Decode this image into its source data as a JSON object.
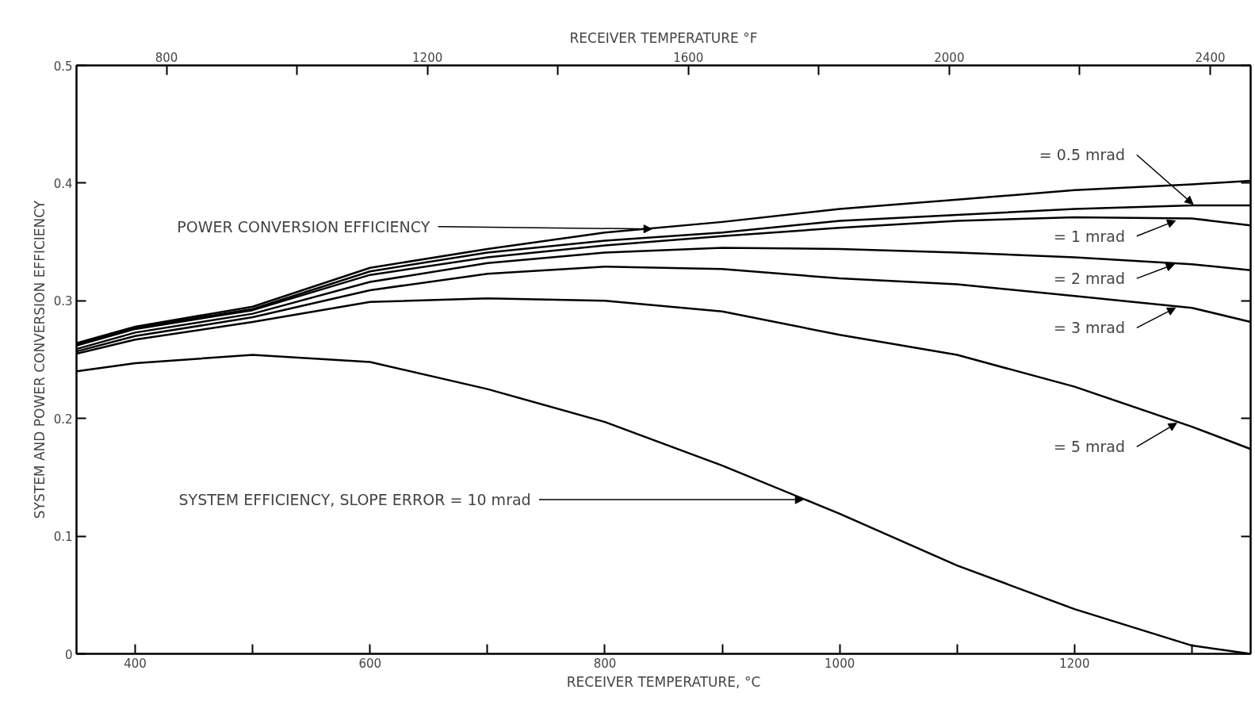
{
  "chart_data": {
    "type": "line",
    "xlabel": "RECEIVER TEMPERATURE, °C",
    "x2label": "RECEIVER TEMPERATURE °F",
    "ylabel": "SYSTEM AND POWER CONVERSION EFFICIENCY",
    "x": [
      350,
      400,
      500,
      600,
      700,
      800,
      900,
      1000,
      1100,
      1200,
      1300,
      1350
    ],
    "series": [
      {
        "color": "#000000",
        "values": [
          0.264,
          0.278,
          0.295,
          0.328,
          0.344,
          0.358,
          0.367,
          0.378,
          0.386,
          0.394,
          0.399,
          0.402
        ]
      },
      {
        "color": "#000000",
        "values": [
          0.263,
          0.277,
          0.293,
          0.325,
          0.341,
          0.351,
          0.358,
          0.368,
          0.373,
          0.378,
          0.381,
          0.381
        ]
      },
      {
        "color": "#000000",
        "values": [
          0.262,
          0.276,
          0.292,
          0.322,
          0.337,
          0.347,
          0.355,
          0.362,
          0.368,
          0.371,
          0.37,
          0.364
        ]
      },
      {
        "color": "#000000",
        "values": [
          0.259,
          0.273,
          0.289,
          0.316,
          0.332,
          0.341,
          0.345,
          0.344,
          0.341,
          0.337,
          0.331,
          0.326
        ]
      },
      {
        "color": "#000000",
        "values": [
          0.257,
          0.27,
          0.286,
          0.309,
          0.323,
          0.329,
          0.327,
          0.319,
          0.314,
          0.304,
          0.294,
          0.282
        ]
      },
      {
        "color": "#000000",
        "values": [
          0.255,
          0.267,
          0.282,
          0.299,
          0.302,
          0.3,
          0.291,
          0.271,
          0.254,
          0.227,
          0.193,
          0.174
        ]
      },
      {
        "color": "#000000",
        "values": [
          0.24,
          0.247,
          0.254,
          0.248,
          0.225,
          0.197,
          0.16,
          0.119,
          0.075,
          0.038,
          0.007,
          0.0
        ]
      }
    ],
    "xlim": [
      350,
      1350
    ],
    "xticks": [
      400,
      {
        "value": 500,
        "label": null
      },
      600,
      {
        "value": 700,
        "label": null
      },
      800,
      {
        "value": 900,
        "label": null
      },
      1000,
      {
        "value": 1100,
        "label": null
      },
      1200,
      {
        "value": 1300,
        "label": null
      }
    ],
    "x2lim": [
      662,
      2462
    ],
    "x2ticks": [
      800,
      {
        "value": 1000,
        "label": null
      },
      1200,
      {
        "value": 1400,
        "label": null
      },
      1600,
      {
        "value": 1800,
        "label": null
      },
      2000,
      {
        "value": 2200,
        "label": null
      },
      2400
    ],
    "ylim": [
      0,
      0.5
    ],
    "yticks": [
      0,
      0.1,
      0.2,
      0.3,
      0.4,
      0.5
    ],
    "grid": false,
    "line_style": "solid",
    "marker": "none",
    "annotations": [
      {
        "text": "POWER CONVERSION EFFICIENCY",
        "x": 840,
        "y": 0.361
      },
      {
        "text": "= 0.5 mrad",
        "x": 1301,
        "y": 0.382
      },
      {
        "text": "= 1 mrad",
        "x": 1286,
        "y": 0.368
      },
      {
        "text": "= 2 mrad",
        "x": 1285,
        "y": 0.331
      },
      {
        "text": "= 3 mrad",
        "x": 1286,
        "y": 0.294
      },
      {
        "text": "= 5 mrad",
        "x": 1287,
        "y": 0.196
      },
      {
        "text": "SYSTEM EFFICIENCY, SLOPE ERROR = 10 mrad",
        "x": 969,
        "y": 0.131
      }
    ]
  }
}
